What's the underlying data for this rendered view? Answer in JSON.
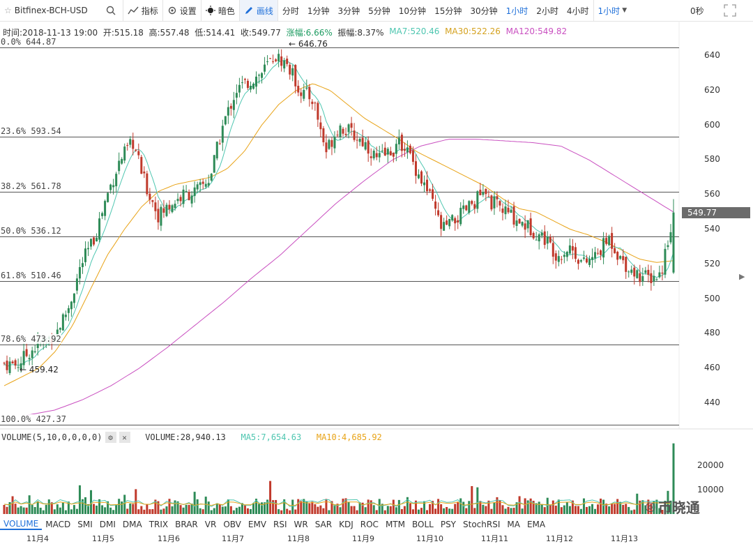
{
  "toolbar": {
    "symbol": "Bitfinex-BCH-USD",
    "indicators_label": "指标",
    "settings_label": "设置",
    "theme_label": "暗色",
    "draw_label": "画线",
    "intervals": [
      "分时",
      "1分钟",
      "3分钟",
      "5分钟",
      "10分钟",
      "15分钟",
      "30分钟",
      "1小时",
      "2小时",
      "4小时"
    ],
    "active_interval": "1小时",
    "interval_select": "1小时",
    "seconds": "0秒"
  },
  "legend": {
    "time": "时间:2018-11-13 19:00",
    "open": "开:515.18",
    "high": "高:557.48",
    "low": "低:514.41",
    "close": "收:549.77",
    "change": "涨幅:6.66%",
    "amplitude": "振幅:8.37%",
    "ma7": "MA7:520.46",
    "ma30": "MA30:522.26",
    "ma120": "MA120:549.82"
  },
  "fib_levels": [
    {
      "label": "0.0% 644.87",
      "price": 644.87
    },
    {
      "label": "23.6% 593.54",
      "price": 593.54
    },
    {
      "label": "38.2% 561.78",
      "price": 561.78
    },
    {
      "label": "50.0% 536.12",
      "price": 536.12
    },
    {
      "label": "61.8% 510.46",
      "price": 510.46
    },
    {
      "label": "78.6% 473.92",
      "price": 473.92
    },
    {
      "label": "100.0% 427.37",
      "price": 427.37
    }
  ],
  "annotations": {
    "high_mark": "646.76",
    "low_mark": "459.42"
  },
  "price_axis": {
    "ticks": [
      "640",
      "620",
      "600",
      "580",
      "560",
      "540",
      "520",
      "500",
      "480",
      "460",
      "440"
    ],
    "current_price": "549.77"
  },
  "volume_panel": {
    "label": "VOLUME(5,10,0,0,0,0)",
    "volume": "VOLUME:28,940.13",
    "ma5": "MA5:7,654.63",
    "ma10": "MA10:4,685.92",
    "ticks": [
      "20000",
      "10000"
    ]
  },
  "indicator_tabs": [
    "VOLUME",
    "MACD",
    "SMI",
    "DMI",
    "DMA",
    "TRIX",
    "BRAR",
    "VR",
    "OBV",
    "EMV",
    "RSI",
    "WR",
    "SAR",
    "KDJ",
    "ROC",
    "MTM",
    "BOLL",
    "PSY",
    "StochRSI",
    "MA",
    "EMA"
  ],
  "active_indicator": "VOLUME",
  "date_axis": [
    "11月4",
    "11月5",
    "11月6",
    "11月7",
    "11月8",
    "11月9",
    "11月10",
    "11月11",
    "11月12",
    "11月13"
  ],
  "watermark": "币晓通",
  "colors": {
    "up": "#2e8b57",
    "down": "#c0392b",
    "ma7": "#4ec6b0",
    "ma30": "#e8a317",
    "ma120": "#c94fc0",
    "accent": "#1e6fd9"
  },
  "chart_data": {
    "type": "candlestick",
    "title": "Bitfinex-BCH-USD",
    "interval": "1小时",
    "ylim": [
      427,
      647
    ],
    "x": [
      "11月4",
      "11月5",
      "11月6",
      "11月7",
      "11月8",
      "11月9",
      "11月10",
      "11月11",
      "11月12",
      "11月13"
    ],
    "close_path": [
      463,
      462,
      470,
      475,
      480,
      495,
      520,
      535,
      560,
      580,
      590,
      565,
      548,
      555,
      560,
      562,
      570,
      600,
      620,
      625,
      630,
      640,
      635,
      620,
      615,
      585,
      600,
      595,
      590,
      580,
      585,
      590,
      575,
      560,
      540,
      545,
      552,
      560,
      555,
      550,
      545,
      540,
      535,
      525,
      530,
      520,
      525,
      535,
      522,
      515,
      512,
      514,
      550
    ],
    "ma30_path": [
      450,
      455,
      460,
      470,
      485,
      505,
      525,
      540,
      553,
      562,
      566,
      568,
      570,
      575,
      585,
      600,
      612,
      620,
      624,
      620,
      612,
      604,
      598,
      592,
      585,
      580,
      575,
      570,
      565,
      558,
      552,
      550,
      545,
      540,
      537,
      533,
      528,
      523,
      521,
      522
    ],
    "ma120_path": [
      433,
      436,
      442,
      450,
      460,
      472,
      485,
      498,
      512,
      525,
      540,
      555,
      568,
      580,
      588,
      592,
      592,
      591,
      590,
      588,
      580,
      570,
      560,
      550
    ]
  }
}
